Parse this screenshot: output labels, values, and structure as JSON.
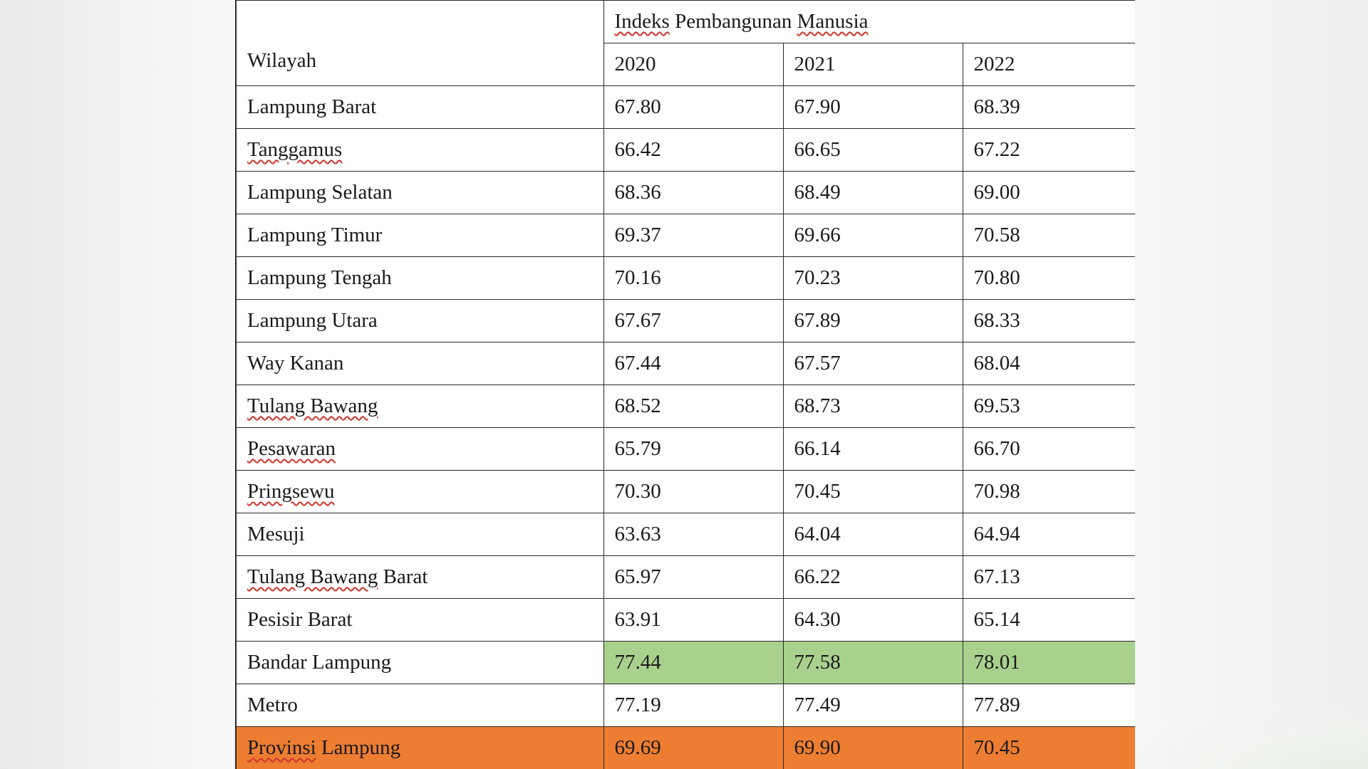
{
  "table": {
    "region_header": "Wilayah",
    "group_header_parts": [
      "Indeks",
      "Pembangunan",
      "Manusia"
    ],
    "years": [
      "2020",
      "2021",
      "2022"
    ],
    "rows": [
      {
        "region": "Lampung Barat",
        "values": [
          "67.80",
          "67.90",
          "68.39"
        ]
      },
      {
        "region": "Tanggamus",
        "values": [
          "66.42",
          "66.65",
          "67.22"
        ]
      },
      {
        "region": "Lampung Selatan",
        "values": [
          "68.36",
          "68.49",
          "69.00"
        ]
      },
      {
        "region": "Lampung Timur",
        "values": [
          "69.37",
          "69.66",
          "70.58"
        ]
      },
      {
        "region": "Lampung Tengah",
        "values": [
          "70.16",
          "70.23",
          "70.80"
        ]
      },
      {
        "region": "Lampung Utara",
        "values": [
          "67.67",
          "67.89",
          "68.33"
        ]
      },
      {
        "region": "Way Kanan",
        "values": [
          "67.44",
          "67.57",
          "68.04"
        ]
      },
      {
        "region": "Tulang Bawang",
        "values": [
          "68.52",
          "68.73",
          "69.53"
        ]
      },
      {
        "region": "Pesawaran",
        "values": [
          "65.79",
          "66.14",
          "66.70"
        ]
      },
      {
        "region": "Pringsewu",
        "values": [
          "70.30",
          "70.45",
          "70.98"
        ]
      },
      {
        "region": "Mesuji",
        "values": [
          "63.63",
          "64.04",
          "64.94"
        ]
      },
      {
        "region_parts": [
          "Tulang Bawang",
          "Barat"
        ],
        "values": [
          "65.97",
          "66.22",
          "67.13"
        ]
      },
      {
        "region": "Pesisir Barat",
        "values": [
          "63.91",
          "64.30",
          "65.14"
        ]
      },
      {
        "region": "Bandar Lampung",
        "values": [
          "77.44",
          "77.58",
          "78.01"
        ]
      },
      {
        "region": "Metro",
        "values": [
          "77.19",
          "77.49",
          "77.89"
        ]
      },
      {
        "region_parts": [
          "Provinsi",
          "Lampung"
        ],
        "values": [
          "69.69",
          "69.90",
          "70.45"
        ]
      }
    ]
  },
  "colors": {
    "highlight_green": "#a9d18e",
    "highlight_orange": "#ed7d31",
    "spellcheck_underline": "#d0342c"
  }
}
